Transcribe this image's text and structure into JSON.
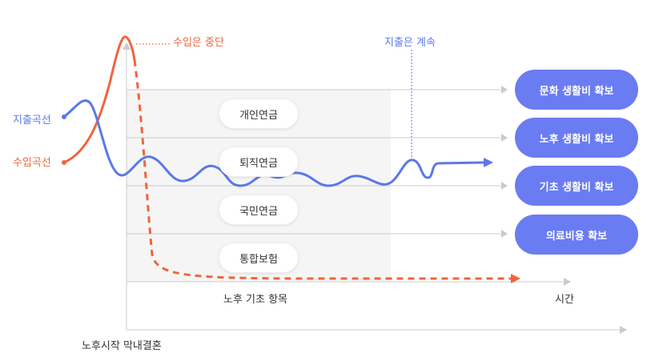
{
  "diagram": {
    "income_stop_label": "수입은 중단",
    "expense_continue_label": "지출은 계속",
    "expense_curve_label": "지출곡선",
    "income_curve_label": "수입곡선",
    "items": [
      {
        "label": "개인연금"
      },
      {
        "label": "퇴직연금"
      },
      {
        "label": "국민연금"
      },
      {
        "label": "통합보험"
      }
    ],
    "goals": [
      {
        "label": "문화 생활비 확보"
      },
      {
        "label": "노후 생활비 확보"
      },
      {
        "label": "기초 생활비 확보"
      },
      {
        "label": "의료비용 확보"
      }
    ],
    "x_axis_inner_label": "노후 기초 항목",
    "x_axis_time_label": "시간",
    "bottom_label": "노후시작 막내결혼",
    "colors": {
      "expense": "#5b78e8",
      "income": "#f0643c",
      "button": "#6a7cf2",
      "panel": "#f5f5f5",
      "axis": "#cccccc"
    }
  }
}
